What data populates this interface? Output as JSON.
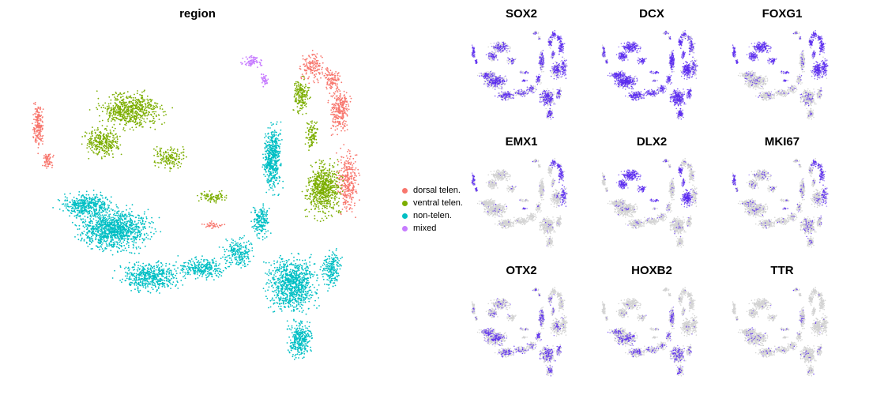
{
  "chart_data": [
    {
      "type": "scatter",
      "title": "region",
      "legend_position": "right",
      "grid": false,
      "series": [
        {
          "name": "dorsal telen.",
          "color": "#F8766D"
        },
        {
          "name": "ventral telen.",
          "color": "#7CAE00"
        },
        {
          "name": "non-telen.",
          "color": "#00BFC4"
        },
        {
          "name": "mixed",
          "color": "#C77CFF"
        }
      ]
    },
    {
      "type": "scatter",
      "panels": [
        {
          "title": "SOX2",
          "low_color": "#D3D3D3",
          "high_color": "#5B2BF0"
        },
        {
          "title": "DCX",
          "low_color": "#D3D3D3",
          "high_color": "#5B2BF0"
        },
        {
          "title": "FOXG1",
          "low_color": "#D3D3D3",
          "high_color": "#5B2BF0"
        },
        {
          "title": "EMX1",
          "low_color": "#D3D3D3",
          "high_color": "#5B2BF0"
        },
        {
          "title": "DLX2",
          "low_color": "#D3D3D3",
          "high_color": "#5B2BF0"
        },
        {
          "title": "MKI67",
          "low_color": "#D3D3D3",
          "high_color": "#5B2BF0"
        },
        {
          "title": "OTX2",
          "low_color": "#D3D3D3",
          "high_color": "#5B2BF0"
        },
        {
          "title": "HOXB2",
          "low_color": "#D3D3D3",
          "high_color": "#5B2BF0"
        },
        {
          "title": "TTR",
          "low_color": "#D3D3D3",
          "high_color": "#5B2BF0"
        }
      ]
    }
  ]
}
